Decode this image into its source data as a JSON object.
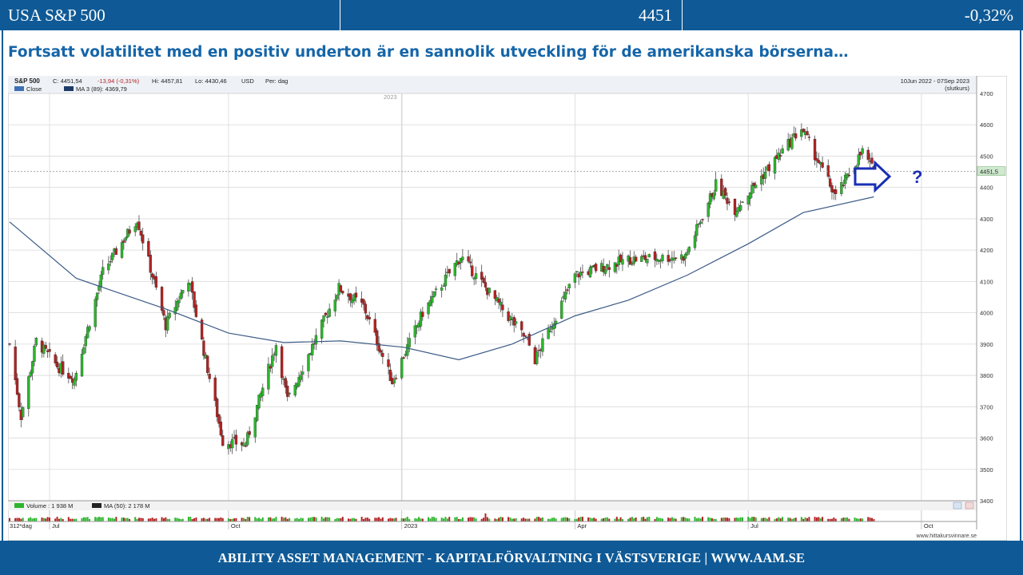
{
  "header": {
    "instrument": "USA S&P 500",
    "last_value": "4451",
    "change_pct": "-0,32%"
  },
  "headline": "Fortsatt volatilitet med en positiv underton är en sannolik utveckling för de amerikanska börserna…",
  "chart_info": {
    "symbol": "S&P 500",
    "ohlc_text": "C: 4451,54",
    "change_text": "-13,94 (-0,31%)",
    "hi_text": "Hi: 4457,81",
    "lo_text": "Lo: 4430,46",
    "currency": "USD",
    "period": "Per: dag",
    "legend_close": "Close",
    "legend_ma": "MA 3 (89): 4369,79",
    "date_range": "10Jun 2022 - 07Sep 2023",
    "price_type": "(slutkurs)",
    "year_marker": "2023",
    "last_price_tag": "4451,5",
    "forecast_mark": "?",
    "volume_legend": "Volume : 1 938 M",
    "volume_ma_legend": "MA (50): 2 178 M",
    "bars_label": "312*dag",
    "watermark": "www.hittakursvinnare.se",
    "colors": {
      "up": "#2db52d",
      "down": "#b22222",
      "ma_line": "#3b5b86",
      "arrow": "#1a2fb5",
      "grid": "#d9d9d9"
    }
  },
  "chart_data": {
    "type": "candlestick",
    "title": "S&P 500",
    "x_range": [
      "2022-06-10",
      "2023-09-07"
    ],
    "x_ticks": [
      "Jul",
      "Oct",
      "2023",
      "Apr",
      "Jul",
      "Oct"
    ],
    "y_ticks": [
      4700,
      4600,
      4500,
      4400,
      4300,
      4200,
      4100,
      4000,
      3900,
      3800,
      3700,
      3600,
      3500,
      3400
    ],
    "ylim": [
      3400,
      4700
    ],
    "close_series": {
      "name": "Close",
      "points": [
        [
          "2022-06-10",
          3900
        ],
        [
          "2022-06-16",
          3670
        ],
        [
          "2022-06-24",
          3910
        ],
        [
          "2022-07-05",
          3830
        ],
        [
          "2022-07-14",
          3790
        ],
        [
          "2022-07-29",
          4130
        ],
        [
          "2022-08-16",
          4300
        ],
        [
          "2022-08-31",
          3960
        ],
        [
          "2022-09-12",
          4110
        ],
        [
          "2022-09-30",
          3590
        ],
        [
          "2022-10-12",
          3580
        ],
        [
          "2022-10-28",
          3900
        ],
        [
          "2022-11-03",
          3720
        ],
        [
          "2022-11-30",
          4080
        ],
        [
          "2022-12-13",
          4020
        ],
        [
          "2022-12-28",
          3780
        ],
        [
          "2023-01-13",
          4000
        ],
        [
          "2023-02-02",
          4180
        ],
        [
          "2023-03-09",
          3910
        ],
        [
          "2023-03-13",
          3850
        ],
        [
          "2023-04-03",
          4120
        ],
        [
          "2023-05-01",
          4170
        ],
        [
          "2023-05-31",
          4180
        ],
        [
          "2023-06-16",
          4410
        ],
        [
          "2023-06-26",
          4330
        ],
        [
          "2023-07-31",
          4590
        ],
        [
          "2023-08-18",
          4370
        ],
        [
          "2023-09-01",
          4515
        ],
        [
          "2023-09-07",
          4451
        ]
      ]
    },
    "ma_series": {
      "name": "MA 3 (89)",
      "points": [
        [
          "2022-06-10",
          4290
        ],
        [
          "2022-07-15",
          4110
        ],
        [
          "2022-09-01",
          4010
        ],
        [
          "2022-10-03",
          3935
        ],
        [
          "2022-11-01",
          3905
        ],
        [
          "2022-12-01",
          3910
        ],
        [
          "2023-01-03",
          3890
        ],
        [
          "2023-02-01",
          3850
        ],
        [
          "2023-03-01",
          3900
        ],
        [
          "2023-04-03",
          3990
        ],
        [
          "2023-05-01",
          4040
        ],
        [
          "2023-06-01",
          4120
        ],
        [
          "2023-07-03",
          4220
        ],
        [
          "2023-08-01",
          4320
        ],
        [
          "2023-09-07",
          4370
        ]
      ]
    }
  },
  "footer": "ABILITY ASSET MANAGEMENT -  KAPITALFÖRVALTNING I VÄSTSVERIGE   |   WWW.AAM.SE"
}
